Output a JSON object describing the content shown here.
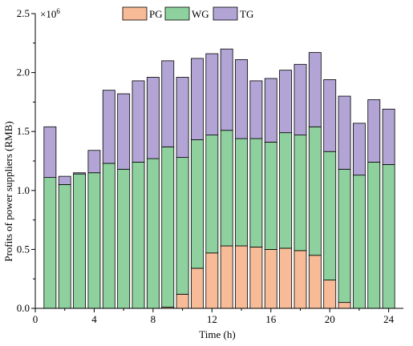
{
  "chart_data": {
    "type": "bar",
    "stacked": true,
    "xlabel": "Time (h)",
    "ylabel": "Profits of power suppliers (RMB)",
    "y_multiplier_label": "×10",
    "y_multiplier_exponent": "6",
    "xlim": [
      0,
      25
    ],
    "ylim": [
      0,
      2.5
    ],
    "x_ticks": [
      0,
      4,
      8,
      12,
      16,
      20,
      24
    ],
    "y_ticks": [
      0.0,
      0.5,
      1.0,
      1.5,
      2.0,
      2.5
    ],
    "y_tick_labels": [
      "0.0",
      "0.5",
      "1.0",
      "1.5",
      "2.0",
      "2.5"
    ],
    "x": [
      1,
      2,
      3,
      4,
      5,
      6,
      7,
      8,
      9,
      10,
      11,
      12,
      13,
      14,
      15,
      16,
      17,
      18,
      19,
      20,
      21,
      22,
      23,
      24
    ],
    "legend_position": "top",
    "series": [
      {
        "name": "PG",
        "color": "#F7BB97",
        "values": [
          0,
          0,
          0,
          0,
          0,
          0,
          0,
          0,
          0.01,
          0.12,
          0.34,
          0.47,
          0.53,
          0.53,
          0.52,
          0.5,
          0.51,
          0.49,
          0.45,
          0.24,
          0.05,
          0,
          0,
          0
        ]
      },
      {
        "name": "WG",
        "color": "#8ED19E",
        "values": [
          1.11,
          1.05,
          1.14,
          1.15,
          1.23,
          1.18,
          1.24,
          1.27,
          1.36,
          1.16,
          1.09,
          1.0,
          0.98,
          0.91,
          0.92,
          0.91,
          0.98,
          0.98,
          1.09,
          1.09,
          1.13,
          1.13,
          1.24,
          1.22
        ]
      },
      {
        "name": "TG",
        "color": "#B2A4D4",
        "values": [
          0.43,
          0.07,
          0.01,
          0.19,
          0.62,
          0.64,
          0.69,
          0.69,
          0.73,
          0.68,
          0.69,
          0.69,
          0.69,
          0.67,
          0.49,
          0.54,
          0.53,
          0.6,
          0.63,
          0.61,
          0.62,
          0.44,
          0.53,
          0.47
        ]
      }
    ]
  }
}
